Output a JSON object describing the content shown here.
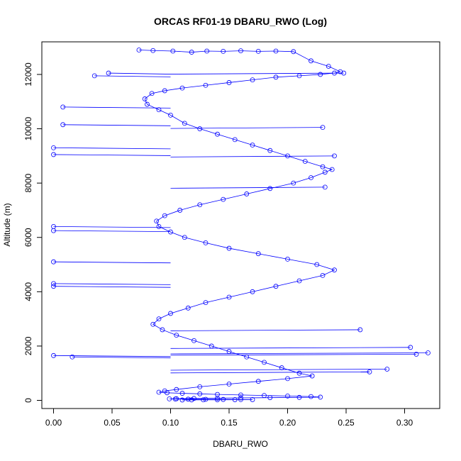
{
  "chart_data": {
    "type": "scatter",
    "title": "ORCAS RF01-19 DBARU_RWO (Log)",
    "xlabel": "DBARU_RWO",
    "ylabel": "Altitude (m)",
    "xlim": [
      -0.01,
      0.33
    ],
    "ylim": [
      -300,
      13200
    ],
    "x_ticks": [
      0.0,
      0.05,
      0.1,
      0.15,
      0.2,
      0.25,
      0.3
    ],
    "x_tick_labels": [
      "0.00",
      "0.05",
      "0.10",
      "0.15",
      "0.20",
      "0.25",
      "0.30"
    ],
    "y_ticks": [
      0,
      2000,
      4000,
      6000,
      8000,
      10000,
      12000
    ],
    "y_tick_labels": [
      "0",
      "2000",
      "4000",
      "6000",
      "8000",
      "10000",
      "12000"
    ],
    "grid": false,
    "marker": "open-circle",
    "connect_points": true,
    "series_color": "#0000ff",
    "series": [
      {
        "x": [
          0.073,
          0.085,
          0.102,
          0.118,
          0.131,
          0.145,
          0.16,
          0.175,
          0.19,
          0.205,
          0.22,
          0.235,
          0.245,
          0.24,
          0.228,
          0.21,
          0.19,
          0.17,
          0.15,
          0.13,
          0.11,
          0.095,
          0.084,
          0.078,
          0.08,
          0.09,
          0.1,
          0.112,
          0.125,
          0.14,
          0.155,
          0.17,
          0.185,
          0.2,
          0.215,
          0.23,
          0.238,
          0.232,
          0.22,
          0.205,
          0.185,
          0.165,
          0.145,
          0.125,
          0.108,
          0.095,
          0.088,
          0.09,
          0.1,
          0.112,
          0.13,
          0.15,
          0.175,
          0.2,
          0.225,
          0.24,
          0.23,
          0.21,
          0.19,
          0.17,
          0.15,
          0.13,
          0.115,
          0.1,
          0.09,
          0.085,
          0.093,
          0.105,
          0.12,
          0.135,
          0.15,
          0.165,
          0.18,
          0.195,
          0.21,
          0.221,
          0.2,
          0.175,
          0.15,
          0.125,
          0.105,
          0.095,
          0.09,
          0.097,
          0.11,
          0.125,
          0.14,
          0.16,
          0.18,
          0.2,
          0.22,
          0.228,
          0.21,
          0.185,
          0.16,
          0.14,
          0.12,
          0.105,
          0.099,
          0.104,
          0.115,
          0.13,
          0.145,
          0.16,
          0.17,
          0.155,
          0.14,
          0.128,
          0.118,
          0.11
        ],
        "y": [
          12900,
          12880,
          12860,
          12820,
          12860,
          12850,
          12870,
          12850,
          12860,
          12840,
          12500,
          12300,
          12100,
          12050,
          12000,
          11950,
          11900,
          11800,
          11700,
          11600,
          11500,
          11400,
          11300,
          11100,
          10900,
          10700,
          10500,
          10200,
          10000,
          9800,
          9600,
          9400,
          9200,
          9000,
          8800,
          8600,
          8500,
          8400,
          8200,
          8000,
          7800,
          7600,
          7400,
          7200,
          7000,
          6800,
          6600,
          6400,
          6200,
          6000,
          5800,
          5600,
          5400,
          5200,
          5000,
          4800,
          4600,
          4400,
          4200,
          4000,
          3800,
          3600,
          3400,
          3200,
          3000,
          2800,
          2600,
          2400,
          2200,
          2000,
          1800,
          1600,
          1400,
          1200,
          1000,
          900,
          800,
          700,
          600,
          500,
          400,
          350,
          300,
          280,
          260,
          240,
          220,
          200,
          180,
          160,
          140,
          120,
          110,
          100,
          90,
          80,
          70,
          60,
          55,
          50,
          45,
          40,
          35,
          30,
          28,
          25,
          22,
          20,
          18,
          15
        ],
        "extreme_points": [
          {
            "x": 0.0,
            "y": 9300
          },
          {
            "x": 0.0,
            "y": 9050
          },
          {
            "x": 0.0,
            "y": 6400
          },
          {
            "x": 0.0,
            "y": 6250
          },
          {
            "x": 0.0,
            "y": 5100
          },
          {
            "x": 0.0,
            "y": 4300
          },
          {
            "x": 0.0,
            "y": 4200
          },
          {
            "x": 0.0,
            "y": 1650
          },
          {
            "x": 0.008,
            "y": 10800
          },
          {
            "x": 0.008,
            "y": 10150
          },
          {
            "x": 0.016,
            "y": 1600
          },
          {
            "x": 0.035,
            "y": 11950
          },
          {
            "x": 0.047,
            "y": 12050
          },
          {
            "x": 0.32,
            "y": 1750
          },
          {
            "x": 0.31,
            "y": 1700
          },
          {
            "x": 0.305,
            "y": 1950
          },
          {
            "x": 0.285,
            "y": 1150
          },
          {
            "x": 0.27,
            "y": 1050
          },
          {
            "x": 0.262,
            "y": 2600
          },
          {
            "x": 0.248,
            "y": 12050
          },
          {
            "x": 0.24,
            "y": 9000
          },
          {
            "x": 0.232,
            "y": 7850
          },
          {
            "x": 0.23,
            "y": 10050
          }
        ]
      }
    ]
  }
}
